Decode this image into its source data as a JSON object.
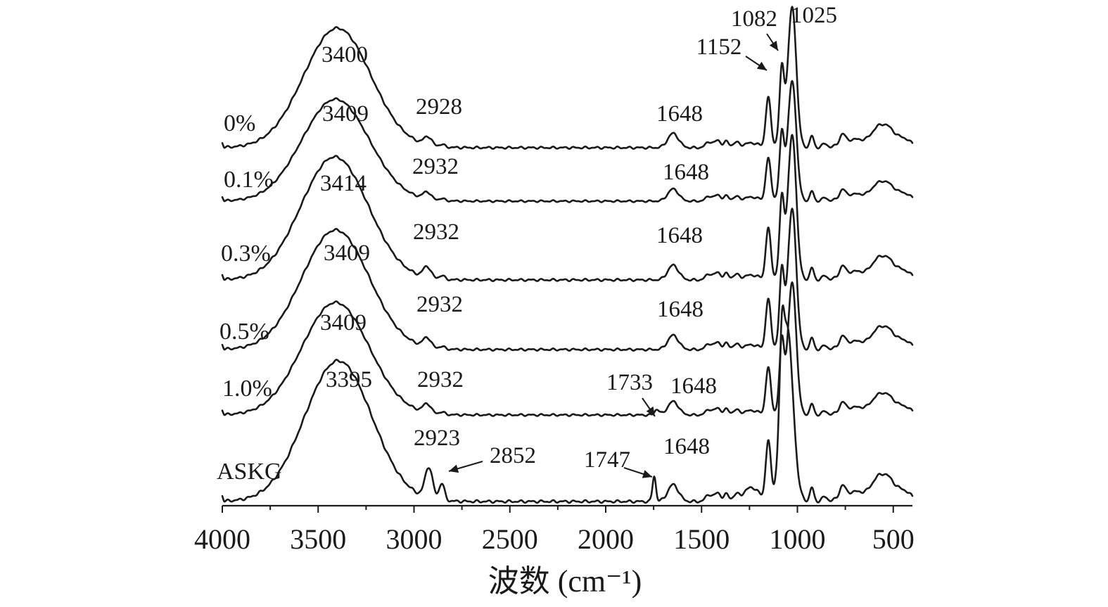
{
  "chart_data": {
    "type": "line",
    "xlabel": "波数 (cm⁻¹)",
    "ylabel": "",
    "xlim": [
      4000,
      400
    ],
    "x_reversed": true,
    "xticks": [
      4000,
      3500,
      3000,
      2500,
      2000,
      1500,
      1000,
      500
    ],
    "grid": false,
    "legend": "none",
    "series": [
      {
        "name": "0%",
        "peaks": [
          {
            "x": 3400,
            "label": "3400"
          },
          {
            "x": 2928,
            "label": "2928"
          },
          {
            "x": 1648,
            "label": "1648"
          },
          {
            "x": 1152,
            "label": "1152"
          },
          {
            "x": 1082,
            "label": "1082"
          },
          {
            "x": 1025,
            "label": "1025"
          }
        ]
      },
      {
        "name": "0.1%",
        "peaks": [
          {
            "x": 3409,
            "label": "3409"
          },
          {
            "x": 2932,
            "label": "2932"
          },
          {
            "x": 1648,
            "label": "1648"
          }
        ]
      },
      {
        "name": "0.3%",
        "peaks": [
          {
            "x": 3414,
            "label": "3414"
          },
          {
            "x": 2932,
            "label": "2932"
          },
          {
            "x": 1648,
            "label": "1648"
          }
        ]
      },
      {
        "name": "0.5%",
        "peaks": [
          {
            "x": 3409,
            "label": "3409"
          },
          {
            "x": 2932,
            "label": "2932"
          },
          {
            "x": 1648,
            "label": "1648"
          }
        ]
      },
      {
        "name": "1.0%",
        "peaks": [
          {
            "x": 3409,
            "label": "3409"
          },
          {
            "x": 2932,
            "label": "2932"
          },
          {
            "x": 1733,
            "label": "1733"
          },
          {
            "x": 1648,
            "label": "1648"
          }
        ]
      },
      {
        "name": "ASKG",
        "peaks": [
          {
            "x": 3395,
            "label": "3395"
          },
          {
            "x": 2923,
            "label": "2923"
          },
          {
            "x": 2852,
            "label": "2852"
          },
          {
            "x": 1747,
            "label": "1747"
          },
          {
            "x": 1648,
            "label": "1648"
          }
        ]
      }
    ]
  }
}
